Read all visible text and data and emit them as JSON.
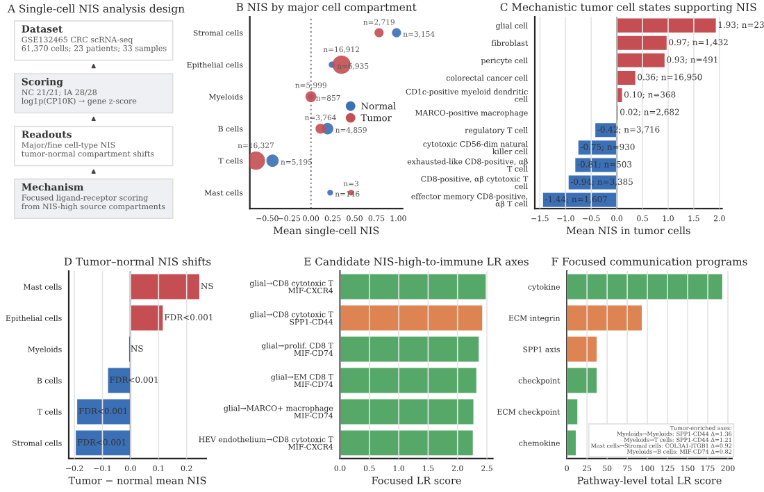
{
  "chart_data": [
    {
      "type": "bubble",
      "orientation": "horizontal",
      "title": "B NIS by major cell compartment",
      "xlabel": "Mean single-cell NIS",
      "categories": [
        "Stromal cells",
        "Epithelial cells",
        "Myeloids",
        "B cells",
        "T cells",
        "Mast cells"
      ],
      "series": [
        {
          "name": "Normal",
          "color": "#3b6fb6",
          "values": [
            0.98,
            0.24,
            0.0,
            0.19,
            -0.44,
            0.22
          ],
          "sizes": [
            0.25,
            0.12,
            0.1,
            0.4,
            0.45,
            0.1
          ]
        },
        {
          "name": "Tumor",
          "color": "#c44e52",
          "values": [
            0.78,
            0.35,
            0.0,
            0.11,
            -0.63,
            0.46
          ],
          "sizes": [
            0.25,
            1,
            0.35,
            0.3,
            1,
            0.1
          ]
        }
      ],
      "annotations": [
        {
          "text": "n=3,154",
          "x": 0.98,
          "y": "Stromal cells"
        },
        {
          "text": "n=6,935",
          "x": 0.24,
          "y": "Epithelial cells"
        },
        {
          "text": "n=857",
          "x": 0.0,
          "y": "Myeloids"
        },
        {
          "text": "n=4,859",
          "x": 0.19,
          "y": "B cells"
        },
        {
          "text": "n=5,195",
          "x": -0.44,
          "y": "T cells"
        },
        {
          "text": "n=146",
          "x": 0.22,
          "y": "Mast cells"
        },
        {
          "text": "n=2,719",
          "x": 0.78,
          "y": "Stromal cells"
        },
        {
          "text": "n=16,912",
          "x": 0.35,
          "y": "Epithelial cells"
        },
        {
          "text": "n=5,999",
          "x": 0.0,
          "y": "Myeloids"
        },
        {
          "text": "n=3,764",
          "x": 0.11,
          "y": "B cells"
        },
        {
          "text": "n=16,327",
          "x": -0.63,
          "y": "T cells"
        },
        {
          "text": "n=3",
          "x": 0.46,
          "y": "Mast cells"
        }
      ],
      "xlim": [
        -0.7,
        1.05
      ],
      "xticks": [
        {
          "value": -0.5,
          "label": "−0.50"
        },
        {
          "value": -0.25,
          "label": "−0.25"
        },
        {
          "value": 0,
          "label": "0.00"
        },
        {
          "value": 0.25,
          "label": "0.25"
        },
        {
          "value": 0.5,
          "label": "0.50"
        },
        {
          "value": 0.75,
          "label": "0.75"
        },
        {
          "value": 1.0,
          "label": "1.00"
        }
      ],
      "ref_lines": [
        {
          "axis": "x",
          "value": 0,
          "color": "#888888",
          "line_style": "dotted"
        }
      ],
      "legend": "right",
      "marker": "circle"
    },
    {
      "type": "bar",
      "orientation": "horizontal",
      "title": "C Mechanistic tumor cell states supporting NIS",
      "xlabel": "Mean NIS in tumor cells",
      "categories": [
        "glial cell",
        "fibroblast",
        "pericyte cell",
        "colorectal cancer cell",
        "CD1c-positive myeloid dendritic\ncell",
        "MARCO-positive macrophage",
        "regulatory T cell",
        "cytotoxic CD56-dim natural\nkiller cell",
        "exhausted-like CD8-positive, αβ\nT cell",
        "CD8-positive, αβ cytotoxic T\ncell",
        "effector memory CD8-positive,\nαβ T cell"
      ],
      "values": [
        1.93,
        0.97,
        0.93,
        0.36,
        0.1,
        0.02,
        -0.42,
        -0.75,
        -0.81,
        -0.94,
        -1.44
      ],
      "colors": [
        "#c44e52",
        "#c44e52",
        "#c44e52",
        "#c44e52",
        "#c44e52",
        "#c44e52",
        "#3b6fb6",
        "#3b6fb6",
        "#3b6fb6",
        "#3b6fb6",
        "#3b6fb6"
      ],
      "value_labels": [
        "1.93; n=23",
        "0.97; n=1,432",
        "0.93; n=491",
        "0.36; n=16,950",
        "0.10; n=368",
        "0.02; n=2,682",
        "-0.42; n=3,716",
        "-0.75; n=930",
        "-0.81; n=503",
        "-0.94; n=3,385",
        "-1.44; n=1,607"
      ],
      "xlim": [
        -1.6,
        2.05
      ],
      "xticks": [
        {
          "value": -1.5,
          "label": "−1.5"
        },
        {
          "value": -1.0,
          "label": "−1.0"
        },
        {
          "value": -0.5,
          "label": "−0.5"
        },
        {
          "value": 0,
          "label": "0.0"
        },
        {
          "value": 0.5,
          "label": "0.5"
        },
        {
          "value": 1.0,
          "label": "1.0"
        },
        {
          "value": 1.5,
          "label": "1.5"
        },
        {
          "value": 2.0,
          "label": "2.0"
        }
      ],
      "ref_lines": [
        {
          "axis": "x",
          "value": 0,
          "color": "#333333",
          "line_style": "solid"
        }
      ],
      "grid": "x"
    },
    {
      "type": "bar",
      "orientation": "horizontal",
      "title": "D Tumor–normal NIS shifts",
      "xlabel": "Tumor − normal mean NIS",
      "categories": [
        "Mast cells",
        "Epithelial cells",
        "Myeloids",
        "B cells",
        "T cells",
        "Stromal cells"
      ],
      "values": [
        0.245,
        0.115,
        -0.005,
        -0.08,
        -0.19,
        -0.195
      ],
      "colors": [
        "#c44e52",
        "#c44e52",
        "#3b6fb6",
        "#3b6fb6",
        "#3b6fb6",
        "#3b6fb6"
      ],
      "value_labels": [
        "NS",
        "FDR<0.001",
        "NS",
        "FDR<0.001",
        "FDR<0.001",
        "FDR<0.001"
      ],
      "xlim": [
        -0.22,
        0.27
      ],
      "xticks": [
        {
          "value": -0.2,
          "label": "−0.2"
        },
        {
          "value": -0.1,
          "label": "−0.1"
        },
        {
          "value": 0,
          "label": "0.0"
        },
        {
          "value": 0.1,
          "label": "0.1"
        },
        {
          "value": 0.2,
          "label": "0.2"
        }
      ],
      "ref_lines": [
        {
          "axis": "x",
          "value": 0,
          "color": "#333333",
          "line_style": "solid"
        }
      ],
      "grid": "x"
    },
    {
      "type": "bar",
      "orientation": "horizontal",
      "title": "E Candidate NIS-high-to-immune LR axes",
      "xlabel": "Focused LR score",
      "categories": [
        "glial→CD8 cytotoxic T\nMIF-CXCR4",
        "glial→CD8 cytotoxic T\nSPP1-CD44",
        "glial→prolif. CD8 T\nMIF-CD74",
        "glial→EM CD8 T\nMIF-CD74",
        "glial→MARCO+ macrophage\nMIF-CD74",
        "HEV endothelium→CD8 cytotoxic T\nMIF-CXCR4"
      ],
      "values": [
        2.48,
        2.42,
        2.36,
        2.32,
        2.27,
        2.26
      ],
      "colors": [
        "#55a868",
        "#dd8452",
        "#55a868",
        "#55a868",
        "#55a868",
        "#55a868"
      ],
      "xlim": [
        0,
        2.6
      ],
      "xticks": [
        {
          "value": 0,
          "label": "0.0"
        },
        {
          "value": 0.5,
          "label": "0.5"
        },
        {
          "value": 1.0,
          "label": "1.0"
        },
        {
          "value": 1.5,
          "label": "1.5"
        },
        {
          "value": 2.0,
          "label": "2.0"
        },
        {
          "value": 2.5,
          "label": "2.5"
        }
      ],
      "grid": "x"
    },
    {
      "type": "bar",
      "orientation": "horizontal",
      "title": "F Focused communication programs",
      "xlabel": "Pathway-level total LR score",
      "categories": [
        "cytokine",
        "ECM integrin",
        "SPP1 axis",
        "checkpoint",
        "ECM checkpoint",
        "chemokine"
      ],
      "values": [
        193,
        93,
        37,
        37,
        13,
        11
      ],
      "colors": [
        "#55a868",
        "#dd8452",
        "#dd8452",
        "#55a868",
        "#55a868",
        "#55a868"
      ],
      "xlim": [
        0,
        205
      ],
      "xticks": [
        0,
        25,
        50,
        75,
        100,
        125,
        150,
        175,
        200
      ],
      "grid": "x",
      "annotations": [
        "Tumor-enriched axes:\nMyeloids→Myeloids: SPP1-CD44 Δ=1.36\nMyeloids→T cells: SPP1-CD44 Δ=1.21\nMast cells→Stromal cells: COL3A1-ITGB1 Δ=0.92\nMyeloids→B cells: MIF-CD74 Δ=0.82"
      ]
    },
    {
      "type": "other",
      "title": "A Single-cell NIS analysis design",
      "categories": [
        "Dataset",
        "Scoring",
        "Readouts",
        "Mechanism"
      ],
      "annotations": [
        "GSE132465 CRC scRNA-seq\n61,370 cells; 23 patients; 33 samples",
        "NC 21/21; IA 28/28\nlog1p(CP10K) → gene z-score",
        "Major/fine cell-type NIS\ntumor-normal compartment shifts",
        "Focused ligand-receptor scoring\nfrom NIS-high source compartments"
      ]
    }
  ]
}
